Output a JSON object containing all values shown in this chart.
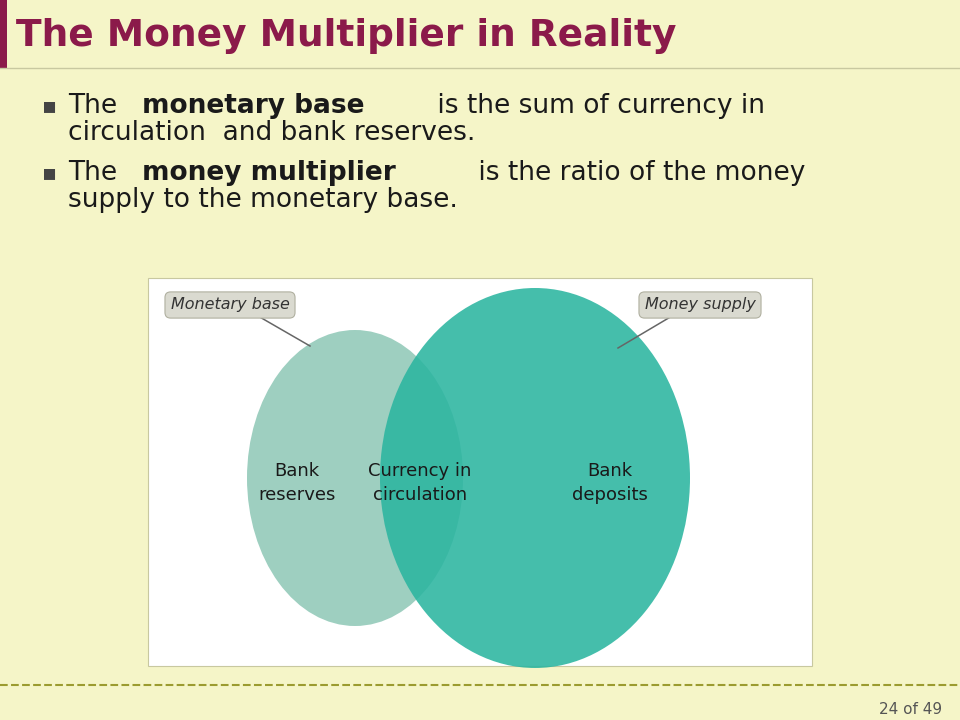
{
  "title": "The Money Multiplier in Reality",
  "title_color": "#8B1A4A",
  "title_bar_color": "#8B1A4A",
  "bg_color": "#F5F5C8",
  "diagram_bg": "#FFFFFF",
  "circle_left_color": "#9ECFC0",
  "circle_right_color": "#2BB5A0",
  "label_left_top": "Monetary base",
  "label_right_top": "Money supply",
  "label_left": "Bank\nreserves",
  "label_center": "Currency in\ncirculation",
  "label_right": "Bank\ndeposits",
  "footer_text": "24 of 49",
  "footer_line_color": "#9B9B30"
}
